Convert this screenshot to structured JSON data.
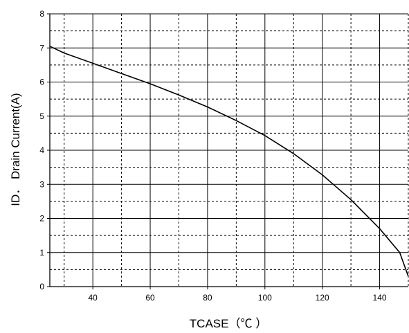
{
  "chart_data": {
    "type": "line",
    "title": "",
    "xlabel": "TCASE（℃ ）",
    "ylabel": "ID．  Drain Current(A)",
    "xlim": [
      25,
      150
    ],
    "ylim": [
      0,
      8
    ],
    "x_ticks": [
      40,
      60,
      80,
      100,
      120,
      140
    ],
    "y_ticks": [
      0,
      1,
      2,
      3,
      4,
      5,
      6,
      7,
      8
    ],
    "grid": true,
    "legend": "none",
    "series": [
      {
        "x": [
          25,
          30,
          40,
          50,
          60,
          70,
          80,
          90,
          100,
          110,
          120,
          130,
          140,
          147,
          150
        ],
        "y": [
          7.05,
          6.85,
          6.55,
          6.25,
          5.95,
          5.62,
          5.27,
          4.87,
          4.43,
          3.9,
          3.28,
          2.55,
          1.7,
          1.0,
          0.3
        ]
      }
    ],
    "colors": {
      "line": "#000000",
      "axis": "#000000",
      "grid": "#000000"
    }
  }
}
